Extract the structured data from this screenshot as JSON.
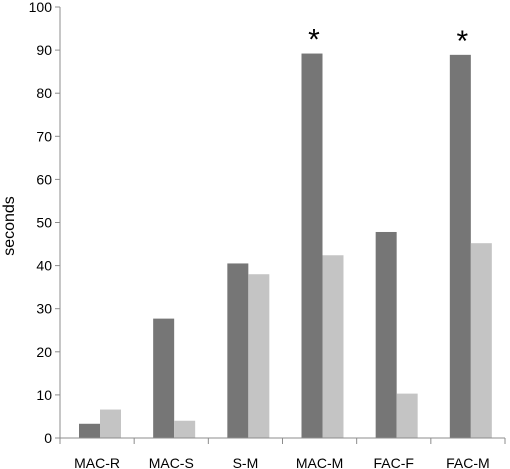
{
  "chart_data": {
    "type": "bar",
    "categories": [
      "MAC-R",
      "MAC-S",
      "S-M",
      "MAC-M",
      "FAC-F",
      "FAC-M"
    ],
    "series": [
      {
        "values": [
          3.3,
          27.7,
          40.5,
          89.2,
          47.8,
          88.9
        ],
        "color": "#767676"
      },
      {
        "values": [
          6.6,
          4.0,
          38.0,
          42.4,
          10.3,
          45.2
        ],
        "color": "#c4c4c4"
      }
    ],
    "ylabel": "seconds",
    "ylim": [
      0,
      100
    ],
    "yticks": [
      0,
      10,
      20,
      30,
      40,
      50,
      60,
      70,
      80,
      90,
      100
    ],
    "grid": false,
    "annotations": [
      {
        "category": "MAC-M",
        "text": "*"
      },
      {
        "category": "FAC-M",
        "text": "*"
      }
    ]
  }
}
